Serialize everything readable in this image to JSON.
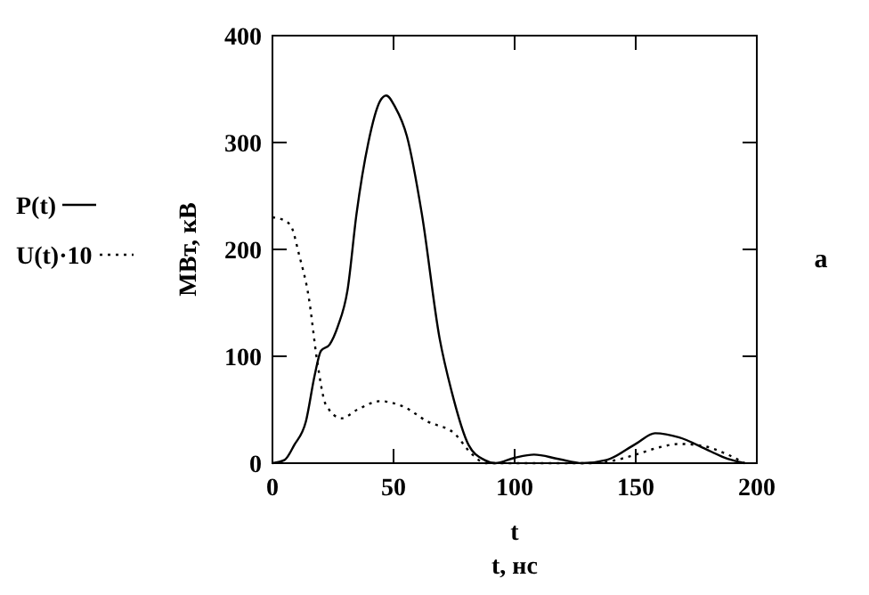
{
  "chart_data": {
    "type": "line",
    "ylabel": "МВт, кВ",
    "xlabel": "t",
    "annotations": [
      "t, нс",
      "а"
    ],
    "xlim": [
      0,
      200
    ],
    "ylim": [
      0,
      400
    ],
    "xticks": [
      0,
      50,
      100,
      150,
      200
    ],
    "yticks": [
      0,
      100,
      200,
      300,
      400
    ],
    "grid": false,
    "legend": "left",
    "series": [
      {
        "name": "P(t)",
        "color": "#000000",
        "line_style": "solid",
        "x": [
          0,
          5,
          9,
          13.8,
          17.5,
          20,
          23.6,
          27,
          31,
          34.7,
          39.6,
          44.5,
          47,
          50.7,
          55.5,
          61.7,
          69,
          74,
          81,
          87.5,
          92,
          100,
          108,
          118,
          128,
          138,
          150,
          158,
          168,
          180,
          188,
          195
        ],
        "values": [
          0,
          3,
          17,
          39,
          83,
          105,
          111,
          128,
          162,
          233,
          300,
          339,
          344,
          333,
          306,
          233,
          117,
          67,
          17,
          3,
          0,
          5,
          8,
          4,
          0,
          3,
          18,
          28,
          24,
          12,
          4,
          0
        ]
      },
      {
        "name": "U(t)·10",
        "color": "#000000",
        "line_style": "dotted",
        "x": [
          0,
          4,
          7.6,
          11,
          15,
          18.5,
          22,
          28.5,
          35,
          44.5,
          54,
          64,
          75,
          82.6,
          88,
          100,
          120,
          130,
          140,
          150,
          160,
          168,
          178,
          188,
          195
        ],
        "values": [
          230,
          228,
          222,
          195,
          155,
          95,
          55,
          42,
          50,
          58,
          53,
          39,
          28,
          8,
          0,
          0,
          0,
          0,
          2,
          8,
          15,
          18,
          16,
          8,
          0
        ]
      }
    ]
  }
}
